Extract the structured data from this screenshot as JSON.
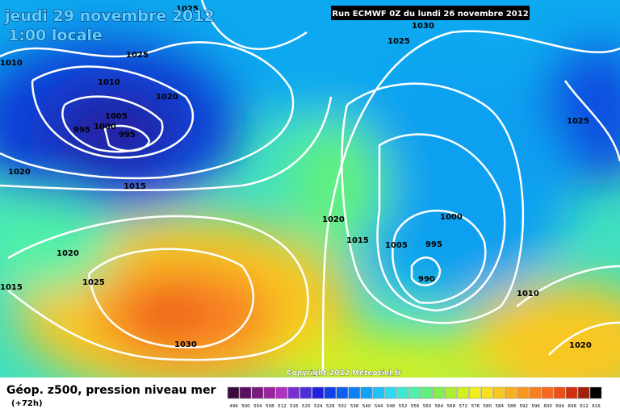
{
  "header": {
    "title": "jeudi 29 novembre 2012",
    "time": "1:00 locale",
    "run": "Run ECMWF 0Z du lundi 26 novembre 2012"
  },
  "isobar_labels": [
    "1025",
    "1010",
    "1025",
    "1010",
    "1020",
    "1005",
    "1000",
    "995",
    "995",
    "1020",
    "1015",
    "1030",
    "1025",
    "1025",
    "1020",
    "1000",
    "1015",
    "1005",
    "995",
    "990",
    "1020",
    "1025",
    "1015",
    "1010",
    "1030",
    "1020"
  ],
  "copyright": "Copyright 2012 Meteociel.fr",
  "legend": {
    "title": "Géop. z500, pression niveau mer",
    "step": "(+72h)",
    "labels": [
      "496",
      "500",
      "504",
      "508",
      "512",
      "516",
      "520",
      "524",
      "528",
      "532",
      "536",
      "540",
      "544",
      "548",
      "552",
      "556",
      "560",
      "564",
      "568",
      "572",
      "576",
      "580",
      "584",
      "588",
      "592",
      "596",
      "600",
      "604",
      "608",
      "612",
      "616"
    ],
    "colors": [
      "#3a0a3a",
      "#5a0f5f",
      "#7a1a80",
      "#9a22a0",
      "#b030c0",
      "#7a30d0",
      "#4a30d8",
      "#2020e0",
      "#1040e8",
      "#0c60f0",
      "#0a80f4",
      "#10a0f8",
      "#20c0f8",
      "#30d8f0",
      "#40e8d0",
      "#50f0a8",
      "#60f080",
      "#80f050",
      "#a8f030",
      "#d0f020",
      "#f0f020",
      "#f8e020",
      "#f8c820",
      "#f8b020",
      "#f89820",
      "#f88020",
      "#f86820",
      "#e85018",
      "#d03010",
      "#a02008",
      "#000000"
    ]
  }
}
